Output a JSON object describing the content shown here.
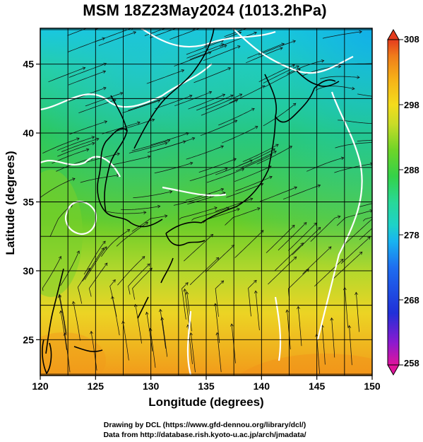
{
  "title": "MSM 18Z23May2024 (1013.2hPa)",
  "map": {
    "xlabel": "Longitude (degrees)",
    "ylabel": "Latitude  (degrees)",
    "lon_range": [
      120,
      150
    ],
    "lat_range": [
      22.4,
      47.6
    ],
    "lon_ticks": [
      "120",
      "125",
      "130",
      "135",
      "140",
      "145",
      "150"
    ],
    "lat_ticks": [
      "25",
      "30",
      "35",
      "40",
      "45"
    ],
    "variable": "surface temperature (K) with streamlines",
    "grid": true
  },
  "colorbar": {
    "min": 258,
    "max": 308,
    "ticks": [
      "308",
      "298",
      "288",
      "278",
      "268",
      "258"
    ],
    "colors": [
      "#e0149c",
      "#8a1ad0",
      "#2030d8",
      "#1e6ef0",
      "#18b4f0",
      "#1ed2c8",
      "#28d898",
      "#34d248",
      "#6ed428",
      "#c8dc28",
      "#f4dc1c",
      "#f6b018",
      "#f07c1a",
      "#e43c1e"
    ]
  },
  "footer": {
    "line1": "Drawing by DCL (https://www.gfd-dennou.org/library/dcl/)",
    "line2": "Data from http://database.rish.kyoto-u.ac.jp/arch/jmadata/"
  }
}
